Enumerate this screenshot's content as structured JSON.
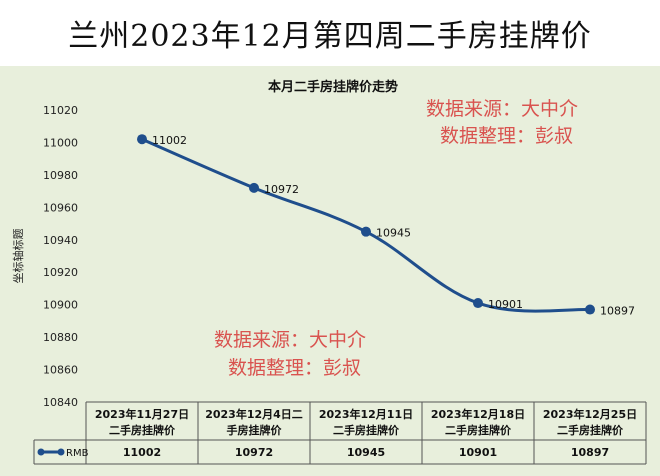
{
  "page_title": "兰州2023年12月第四周二手房挂牌价",
  "watermark": {
    "line1": "数据来源：大中介",
    "line2": "数据整理：彭叔"
  },
  "colors": {
    "line": "#1f4e8c",
    "background": "#e8efdc",
    "watermark": "#d9534f"
  },
  "chart_data": {
    "type": "line",
    "title": "本月二手房挂牌价走势",
    "ylabel": "坐标轴标题",
    "ylim": [
      10840,
      11020
    ],
    "yticks": [
      10840,
      10860,
      10880,
      10900,
      10920,
      10940,
      10960,
      10980,
      11000,
      11020
    ],
    "grid": false,
    "categories": [
      [
        "2023年11月27日",
        "二手房挂牌价"
      ],
      [
        "2023年12月4日二",
        "手房挂牌价"
      ],
      [
        "2023年12月11日",
        "二手房挂牌价"
      ],
      [
        "2023年12月18日",
        "二手房挂牌价"
      ],
      [
        "2023年12月25日",
        "二手房挂牌价"
      ]
    ],
    "series": [
      {
        "name": "RMB",
        "values": [
          11002,
          10972,
          10945,
          10901,
          10897
        ]
      }
    ],
    "data_table": true
  }
}
